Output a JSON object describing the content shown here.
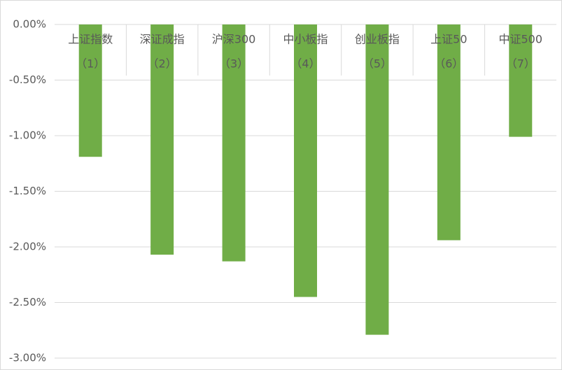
{
  "chart_data": {
    "type": "bar",
    "categories": [
      [
        "上证指数",
        "（1）"
      ],
      [
        "深证成指",
        "（2）"
      ],
      [
        "沪深300",
        "（3）"
      ],
      [
        "中小板指",
        "（4）"
      ],
      [
        "创业板指",
        "（5）"
      ],
      [
        "上证50",
        "（6）"
      ],
      [
        "中证500",
        "（7）"
      ]
    ],
    "values": [
      -1.19,
      -2.07,
      -2.13,
      -2.45,
      -2.79,
      -1.94,
      -1.01
    ],
    "color": "#70ad47",
    "ylim": [
      -3,
      0
    ],
    "yticks": [
      {
        "value": 0,
        "label": "0.00%"
      },
      {
        "value": -0.5,
        "label": "-0.50%"
      },
      {
        "value": -1,
        "label": "-1.00%"
      },
      {
        "value": -1.5,
        "label": "-1.50%"
      },
      {
        "value": -2,
        "label": "-2.00%"
      },
      {
        "value": -2.5,
        "label": "-2.50%"
      },
      {
        "value": -3,
        "label": "-3.00%"
      }
    ],
    "grid": true
  }
}
